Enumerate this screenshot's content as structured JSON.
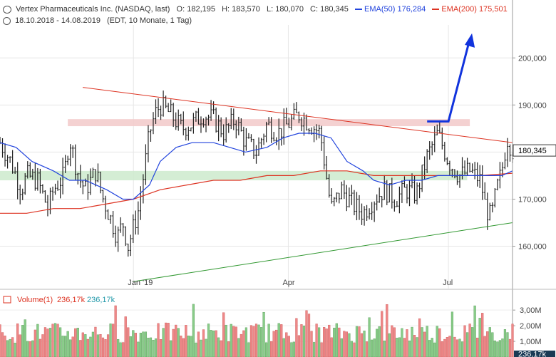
{
  "header": {
    "title": "Vertex Pharmaceuticals Inc. (NASDAQ, last)",
    "open_label": "O:",
    "open": "182,195",
    "high_label": "H:",
    "high": "183,570",
    "low_label": "L:",
    "low": "180,070",
    "close_label": "C:",
    "close": "180,345",
    "ema50_label": "EMA(50)",
    "ema50_value": "176,284",
    "ema200_label": "EMA(200)",
    "ema200_value": "175,501",
    "date_range": "18.10.2018 - 14.08.2019",
    "subinfo": "(EDT, 10 Monate, 1 Tag)"
  },
  "colors": {
    "up": "#222222",
    "ema50": "#2244dd",
    "ema200": "#dd3322",
    "resistance": "#dd3322",
    "support": "#339933",
    "arrow": "#1133dd",
    "res_zone": "#f2c9c9",
    "sup_zone": "#cdeacd",
    "vol_up": "#88cc88",
    "vol_down": "#ee8888"
  },
  "chart_data": {
    "type": "candlestick",
    "price_axis": {
      "min": 151,
      "max": 207,
      "ticks": [
        160000,
        170000,
        180000,
        190000,
        200000
      ],
      "tick_labels": [
        "160,000",
        "170,000",
        "180,000",
        "190,000",
        "200,000"
      ]
    },
    "time_axis": {
      "labels": [
        "Jan '19",
        "Apr",
        "Jul"
      ],
      "label_at_month": [
        2.5,
        5.4,
        8.4
      ]
    },
    "last_price_label": "180,345",
    "last_price": 180.345,
    "ema50_path": [
      [
        0,
        182
      ],
      [
        0.3,
        181
      ],
      [
        0.6,
        178
      ],
      [
        1,
        176
      ],
      [
        1.3,
        174
      ],
      [
        1.6,
        174
      ],
      [
        2,
        172
      ],
      [
        2.3,
        170
      ],
      [
        2.5,
        170
      ],
      [
        2.8,
        173
      ],
      [
        3,
        178
      ],
      [
        3.3,
        181
      ],
      [
        3.6,
        182
      ],
      [
        4,
        182
      ],
      [
        4.3,
        181
      ],
      [
        4.6,
        180
      ],
      [
        5,
        181
      ],
      [
        5.3,
        183
      ],
      [
        5.6,
        184
      ],
      [
        5.9,
        184
      ],
      [
        6.2,
        183
      ],
      [
        6.5,
        178
      ],
      [
        6.8,
        176
      ],
      [
        7,
        174
      ],
      [
        7.3,
        173
      ],
      [
        7.6,
        174
      ],
      [
        7.9,
        174
      ],
      [
        8.2,
        175
      ],
      [
        8.5,
        175
      ],
      [
        8.8,
        175
      ],
      [
        9.1,
        175
      ],
      [
        9.4,
        175
      ],
      [
        9.6,
        176
      ]
    ],
    "ema200_path": [
      [
        0,
        167
      ],
      [
        0.5,
        167
      ],
      [
        1,
        168
      ],
      [
        1.5,
        168
      ],
      [
        2,
        169
      ],
      [
        2.5,
        170
      ],
      [
        3,
        172
      ],
      [
        3.5,
        173
      ],
      [
        4,
        174
      ],
      [
        4.5,
        174
      ],
      [
        5,
        175
      ],
      [
        5.5,
        175
      ],
      [
        6,
        176
      ],
      [
        6.5,
        176
      ],
      [
        7,
        175
      ],
      [
        7.5,
        175
      ],
      [
        8,
        175
      ],
      [
        8.5,
        175
      ],
      [
        9,
        175
      ],
      [
        9.6,
        175.5
      ]
    ],
    "close_path": [
      [
        0,
        182
      ],
      [
        0.2,
        178
      ],
      [
        0.4,
        172
      ],
      [
        0.5,
        175
      ],
      [
        0.7,
        174
      ],
      [
        0.9,
        168
      ],
      [
        1,
        172
      ],
      [
        1.2,
        175
      ],
      [
        1.3,
        183
      ],
      [
        1.4,
        178
      ],
      [
        1.5,
        174
      ],
      [
        1.6,
        172
      ],
      [
        1.8,
        176
      ],
      [
        1.9,
        171
      ],
      [
        2,
        168
      ],
      [
        2.2,
        162
      ],
      [
        2.3,
        165
      ],
      [
        2.4,
        160
      ],
      [
        2.5,
        164
      ],
      [
        2.6,
        168
      ],
      [
        2.7,
        176
      ],
      [
        2.8,
        184
      ],
      [
        2.9,
        188
      ],
      [
        3,
        190
      ],
      [
        3.2,
        188
      ],
      [
        3.4,
        185
      ],
      [
        3.6,
        186
      ],
      [
        3.8,
        188
      ],
      [
        4,
        187
      ],
      [
        4.2,
        184
      ],
      [
        4.4,
        187
      ],
      [
        4.6,
        182
      ],
      [
        4.8,
        180
      ],
      [
        5,
        186
      ],
      [
        5.2,
        184
      ],
      [
        5.4,
        186
      ],
      [
        5.6,
        188
      ],
      [
        5.8,
        186
      ],
      [
        6,
        184
      ],
      [
        6.1,
        176
      ],
      [
        6.2,
        168
      ],
      [
        6.4,
        172
      ],
      [
        6.6,
        169
      ],
      [
        6.8,
        167
      ],
      [
        7,
        170
      ],
      [
        7.2,
        172
      ],
      [
        7.4,
        170
      ],
      [
        7.6,
        172
      ],
      [
        7.8,
        171
      ],
      [
        8,
        179
      ],
      [
        8.2,
        184
      ],
      [
        8.4,
        178
      ],
      [
        8.6,
        175
      ],
      [
        8.8,
        176
      ],
      [
        9,
        174
      ],
      [
        9.1,
        168
      ],
      [
        9.2,
        166
      ],
      [
        9.3,
        172
      ],
      [
        9.4,
        176
      ],
      [
        9.5,
        183
      ],
      [
        9.6,
        180.3
      ]
    ],
    "resistance_line": [
      [
        0,
        196
      ],
      [
        9.6,
        182
      ]
    ],
    "support_line": [
      [
        2.5,
        152.5
      ],
      [
        9.6,
        165
      ]
    ],
    "resistance_zone": [
      185.5,
      187
    ],
    "support_zone": [
      174,
      176
    ],
    "arrow_path": [
      [
        8,
        186.5
      ],
      [
        8.4,
        186.5
      ],
      [
        8.8,
        204
      ]
    ],
    "volume_axis": {
      "max": 3600000,
      "ticks": [
        1000000,
        2000000,
        3000000
      ],
      "tick_labels": [
        "1,00M",
        "2,00M",
        "3,00M"
      ]
    },
    "volume_label": "Volume(1)",
    "volume_value_red": "236,17k",
    "volume_value_green": "236,17k",
    "volume_last_label": "236,17k"
  }
}
